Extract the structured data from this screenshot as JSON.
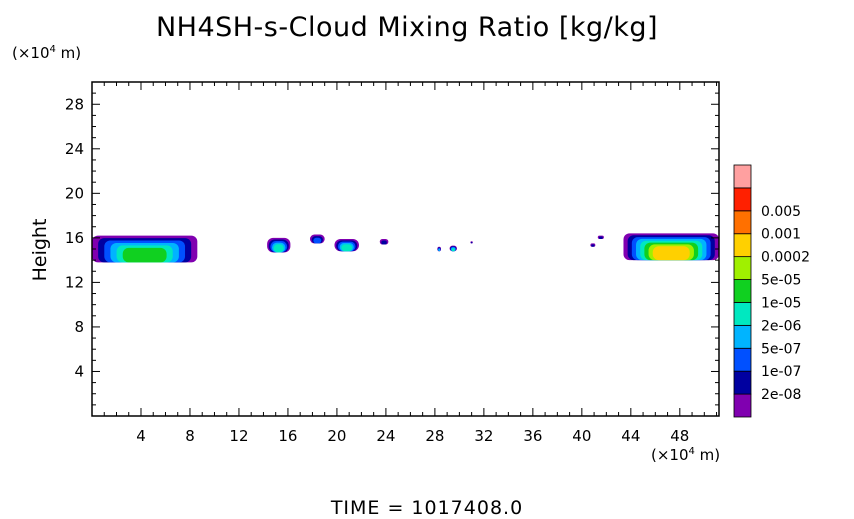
{
  "title": "NH4SH-s-Cloud Mixing Ratio [kg/kg]",
  "y_unit_prefix": "(×10",
  "y_unit_exp": "4",
  "y_unit_suffix": " m)",
  "x_unit_prefix": "(×10",
  "x_unit_exp": "4",
  "x_unit_suffix": " m)",
  "footer": "TIME  =  1017408.0",
  "chart_data": {
    "type": "heatmap",
    "title": "NH4SH-s-Cloud Mixing Ratio [kg/kg]",
    "xlabel": "",
    "ylabel": "Height",
    "x_unit": "×10^4 m",
    "y_unit": "×10^4 m",
    "xlim": [
      0,
      51.2
    ],
    "ylim": [
      0,
      30
    ],
    "x_ticks": [
      4,
      8,
      12,
      16,
      20,
      24,
      28,
      32,
      36,
      40,
      44,
      48
    ],
    "y_ticks": [
      4,
      8,
      12,
      16,
      20,
      24,
      28
    ],
    "colorbar": {
      "levels": [
        "2e-08",
        "1e-07",
        "5e-07",
        "2e-06",
        "1e-05",
        "5e-05",
        "0.0002",
        "0.001",
        "0.005"
      ],
      "colors": [
        "#8000b0",
        "#0000a0",
        "#0050ff",
        "#00b4ff",
        "#00e8c0",
        "#10d020",
        "#a0f000",
        "#ffd000",
        "#ff7000",
        "#ff2000",
        "#ffa0a0"
      ]
    },
    "cloud_regions": [
      {
        "x0": 0.0,
        "x1": 8.6,
        "y0": 13.8,
        "y1": 16.2,
        "max_level": 5
      },
      {
        "x0": 14.3,
        "x1": 16.2,
        "y0": 14.7,
        "y1": 16.0,
        "max_level": 4
      },
      {
        "x0": 17.8,
        "x1": 19.0,
        "y0": 15.5,
        "y1": 16.3,
        "max_level": 2
      },
      {
        "x0": 19.8,
        "x1": 21.8,
        "y0": 14.8,
        "y1": 15.9,
        "max_level": 4
      },
      {
        "x0": 23.5,
        "x1": 24.2,
        "y0": 15.4,
        "y1": 15.9,
        "max_level": 1
      },
      {
        "x0": 28.2,
        "x1": 28.5,
        "y0": 14.8,
        "y1": 15.2,
        "max_level": 3
      },
      {
        "x0": 29.2,
        "x1": 29.8,
        "y0": 14.8,
        "y1": 15.3,
        "max_level": 4
      },
      {
        "x0": 30.9,
        "x1": 31.1,
        "y0": 15.5,
        "y1": 15.7,
        "max_level": 1
      },
      {
        "x0": 40.7,
        "x1": 41.1,
        "y0": 15.2,
        "y1": 15.5,
        "max_level": 1
      },
      {
        "x0": 41.3,
        "x1": 41.8,
        "y0": 15.9,
        "y1": 16.2,
        "max_level": 1
      },
      {
        "x0": 43.4,
        "x1": 51.2,
        "y0": 14.0,
        "y1": 16.4,
        "max_level": 7
      }
    ]
  }
}
